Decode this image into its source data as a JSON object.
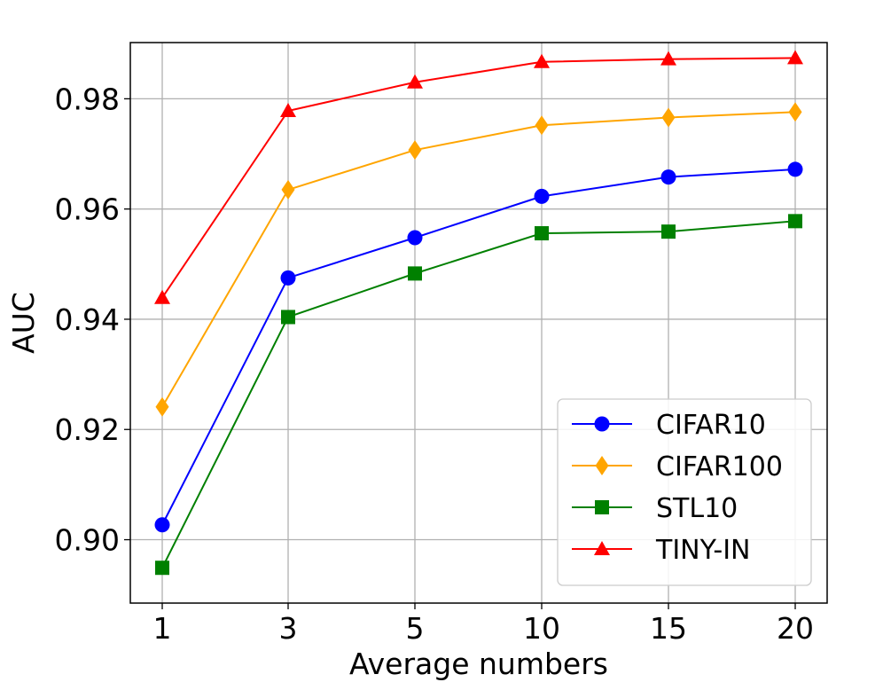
{
  "chart_data": {
    "type": "line",
    "title": "",
    "xlabel": "Average numbers",
    "ylabel": "AUC",
    "categories": [
      "1",
      "3",
      "5",
      "10",
      "15",
      "20"
    ],
    "ylim": [
      0.8885,
      0.9902
    ],
    "yticks": [
      0.9,
      0.92,
      0.94,
      0.96,
      0.98
    ],
    "ytick_labels": [
      "0.90",
      "0.92",
      "0.94",
      "0.96",
      "0.98"
    ],
    "grid": true,
    "legend_position": "bottom-right",
    "series": [
      {
        "name": "CIFAR10",
        "color": "#0000ff",
        "marker": "circle",
        "values": [
          0.9027,
          0.9475,
          0.9548,
          0.9623,
          0.9658,
          0.9672
        ]
      },
      {
        "name": "CIFAR100",
        "color": "#ffa500",
        "marker": "diamond",
        "values": [
          0.9241,
          0.9635,
          0.9707,
          0.9752,
          0.9766,
          0.9776
        ]
      },
      {
        "name": "STL10",
        "color": "#008000",
        "marker": "square",
        "values": [
          0.8949,
          0.9404,
          0.9483,
          0.9556,
          0.9559,
          0.9578
        ]
      },
      {
        "name": "TINY-IN",
        "color": "#ff0000",
        "marker": "triangle",
        "values": [
          0.9439,
          0.9778,
          0.983,
          0.9867,
          0.9872,
          0.9874
        ]
      }
    ]
  }
}
